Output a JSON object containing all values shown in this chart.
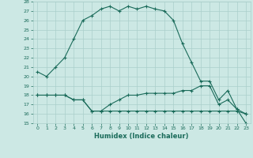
{
  "xlabel": "Humidex (Indice chaleur)",
  "x": [
    0,
    1,
    2,
    3,
    4,
    5,
    6,
    7,
    8,
    9,
    10,
    11,
    12,
    13,
    14,
    15,
    16,
    17,
    18,
    19,
    20,
    21,
    22,
    23
  ],
  "line1": [
    20.5,
    20.0,
    21.0,
    22.0,
    24.0,
    26.0,
    26.5,
    27.2,
    27.5,
    27.0,
    27.5,
    27.2,
    27.5,
    27.2,
    27.0,
    26.0,
    23.5,
    21.5,
    19.5,
    19.5,
    17.5,
    18.5,
    16.5,
    16.0
  ],
  "line2": [
    18.0,
    18.0,
    18.0,
    18.0,
    17.5,
    17.5,
    16.3,
    16.3,
    17.0,
    17.5,
    18.0,
    18.0,
    18.2,
    18.2,
    18.2,
    18.2,
    18.5,
    18.5,
    19.0,
    19.0,
    17.0,
    17.5,
    16.5,
    15.0
  ],
  "line3": [
    18.0,
    18.0,
    18.0,
    18.0,
    17.5,
    17.5,
    16.3,
    16.3,
    16.3,
    16.3,
    16.3,
    16.3,
    16.3,
    16.3,
    16.3,
    16.3,
    16.3,
    16.3,
    16.3,
    16.3,
    16.3,
    16.3,
    16.3,
    16.0
  ],
  "color": "#1a6b5a",
  "bg_color": "#cce8e4",
  "grid_color": "#aacfcb",
  "ylim": [
    15,
    28
  ],
  "xlim": [
    -0.5,
    23.5
  ],
  "yticks": [
    15,
    16,
    17,
    18,
    19,
    20,
    21,
    22,
    23,
    24,
    25,
    26,
    27,
    28
  ],
  "xticks": [
    0,
    1,
    2,
    3,
    4,
    5,
    6,
    7,
    8,
    9,
    10,
    11,
    12,
    13,
    14,
    15,
    16,
    17,
    18,
    19,
    20,
    21,
    22,
    23
  ]
}
